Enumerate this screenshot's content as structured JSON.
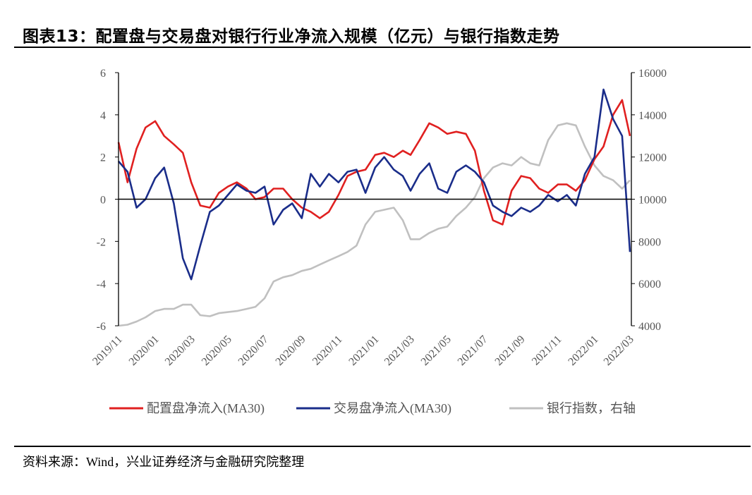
{
  "title": "图表13：配置盘与交易盘对银行行业净流入规模（亿元）与银行指数走势",
  "source": "资料来源：Wind，兴业证券经济与金融研究院整理",
  "chart_data": {
    "type": "line",
    "title": "图表13：配置盘与交易盘对银行行业净流入规模（亿元）与银行指数走势",
    "xlabel": "",
    "ylabel": "",
    "y2label": "",
    "ylim": [
      -6,
      6
    ],
    "yticks": [
      6,
      4,
      2,
      0,
      -2,
      -4,
      -6
    ],
    "y2lim": [
      4000,
      16000
    ],
    "y2ticks": [
      16000,
      14000,
      12000,
      10000,
      8000,
      6000,
      4000
    ],
    "xlim": [
      "2019-11-01",
      "2022-03-04"
    ],
    "xticks": [
      "2019/11",
      "2020/01",
      "2020/03",
      "2020/05",
      "2020/07",
      "2020/09",
      "2020/11",
      "2021/01",
      "2021/03",
      "2021/05",
      "2021/07",
      "2021/09",
      "2021/11",
      "2022/01",
      "2022/03"
    ],
    "grid": false,
    "legend_position": "bottom",
    "x": [
      "2019-11-01",
      "2019-11-16",
      "2019-12-01",
      "2019-12-16",
      "2020-01-01",
      "2020-01-16",
      "2020-02-01",
      "2020-02-16",
      "2020-03-01",
      "2020-03-16",
      "2020-04-01",
      "2020-04-16",
      "2020-05-01",
      "2020-05-16",
      "2020-06-01",
      "2020-06-16",
      "2020-07-01",
      "2020-07-16",
      "2020-08-01",
      "2020-08-16",
      "2020-09-01",
      "2020-09-16",
      "2020-10-01",
      "2020-10-16",
      "2020-11-01",
      "2020-11-16",
      "2020-12-01",
      "2020-12-16",
      "2021-01-01",
      "2021-01-16",
      "2021-02-01",
      "2021-02-16",
      "2021-03-01",
      "2021-03-16",
      "2021-04-01",
      "2021-04-16",
      "2021-05-01",
      "2021-05-16",
      "2021-06-01",
      "2021-06-16",
      "2021-07-01",
      "2021-07-16",
      "2021-08-01",
      "2021-08-16",
      "2021-09-01",
      "2021-09-16",
      "2021-10-01",
      "2021-10-16",
      "2021-11-01",
      "2021-11-16",
      "2021-12-01",
      "2021-12-16",
      "2022-01-01",
      "2022-01-16",
      "2022-02-01",
      "2022-02-16",
      "2022-03-01"
    ],
    "series": [
      {
        "name": "配置盘净流入(MA30)",
        "axis": "left",
        "color": "#e02020",
        "values": [
          2.7,
          0.8,
          2.4,
          3.4,
          3.7,
          3.0,
          2.6,
          2.2,
          0.8,
          -0.3,
          -0.4,
          0.3,
          0.6,
          0.8,
          0.5,
          0,
          0.1,
          0.5,
          0.5,
          0,
          -0.4,
          -0.6,
          -0.9,
          -0.6,
          0.2,
          1.1,
          1.3,
          1.4,
          2.1,
          2.2,
          2.0,
          2.3,
          2.1,
          2.8,
          3.6,
          3.4,
          3.1,
          3.2,
          3.1,
          2.3,
          0.4,
          -1.0,
          -1.2,
          0.4,
          1.1,
          1.0,
          0.5,
          0.3,
          0.7,
          0.7,
          0.4,
          0.9,
          1.9,
          2.5,
          4.0,
          4.7,
          3.0
        ]
      },
      {
        "name": "交易盘净流入(MA30)",
        "axis": "left",
        "color": "#1a2d8a",
        "values": [
          1.8,
          1.3,
          -0.4,
          0,
          1.0,
          1.5,
          -0.2,
          -2.8,
          -3.8,
          -2.2,
          -0.6,
          -0.3,
          0.2,
          0.7,
          0.4,
          0.3,
          0.6,
          -1.2,
          -0.5,
          -0.2,
          -0.9,
          1.2,
          0.6,
          1.2,
          0.8,
          1.3,
          1.4,
          0.3,
          1.5,
          2.0,
          1.4,
          1.1,
          0.4,
          1.2,
          1.7,
          0.5,
          0.3,
          1.3,
          1.6,
          1.3,
          0.8,
          -0.3,
          -0.6,
          -0.8,
          -0.4,
          -0.6,
          -0.3,
          0.2,
          -0.1,
          0.2,
          -0.3,
          1.2,
          2.0,
          5.2,
          3.8,
          3.0,
          -2.5
        ]
      },
      {
        "name": "银行指数，右轴",
        "axis": "right",
        "color": "#c0c0c0",
        "values": [
          4000,
          4050,
          4200,
          4400,
          4700,
          4800,
          4800,
          5000,
          5000,
          4500,
          4450,
          4600,
          4650,
          4700,
          4800,
          4900,
          5300,
          6100,
          6300,
          6400,
          6600,
          6700,
          6900,
          7100,
          7300,
          7500,
          7800,
          8800,
          9400,
          9500,
          9600,
          9000,
          8100,
          8100,
          8400,
          8600,
          8700,
          9200,
          9600,
          10100,
          11000,
          11500,
          11700,
          11600,
          12000,
          11700,
          11600,
          12800,
          13500,
          13600,
          13500,
          12500,
          11600,
          11100,
          10900,
          10500,
          10900
        ]
      }
    ]
  }
}
